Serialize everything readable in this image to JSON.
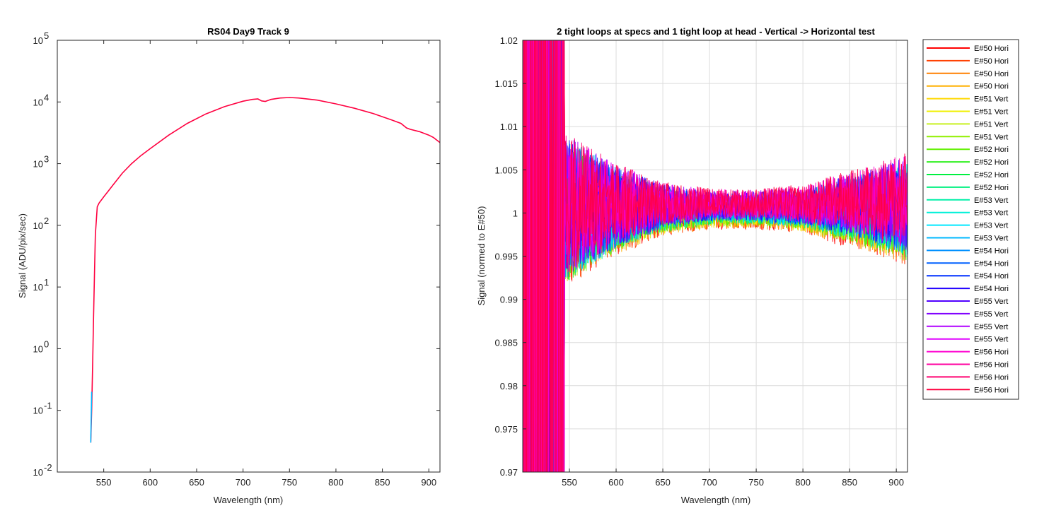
{
  "chart_data": [
    {
      "type": "line",
      "title": "RS04 Day9 Track 9",
      "xlabel": "Wavelength (nm)",
      "ylabel": "Signal (ADU/pix/sec)",
      "yscale": "log",
      "xlim": [
        500,
        912
      ],
      "ylim": [
        0.01,
        100000
      ],
      "grid": false,
      "xticks": [
        550,
        600,
        650,
        700,
        750,
        800,
        850,
        900
      ],
      "xtick_labels": [
        "550",
        "600",
        "650",
        "700",
        "750",
        "800",
        "850",
        "900"
      ],
      "yticks": [
        0.01,
        0.1,
        1,
        10,
        100,
        1000,
        10000,
        100000
      ],
      "ytick_labels": [
        {
          "base": "10",
          "exp": "-2"
        },
        {
          "base": "10",
          "exp": "-1"
        },
        {
          "base": "10",
          "exp": "0"
        },
        {
          "base": "10",
          "exp": "1"
        },
        {
          "base": "10",
          "exp": "2"
        },
        {
          "base": "10",
          "exp": "3"
        },
        {
          "base": "10",
          "exp": "4"
        },
        {
          "base": "10",
          "exp": "5"
        }
      ],
      "series": [
        {
          "color": "#ff0040",
          "x": [
            536,
            537,
            538,
            539,
            540,
            541,
            543,
            545,
            550,
            555,
            560,
            570,
            580,
            590,
            600,
            620,
            640,
            660,
            680,
            700,
            710,
            716,
            720,
            724,
            730,
            740,
            750,
            760,
            780,
            800,
            820,
            840,
            860,
            870,
            876,
            880,
            890,
            900,
            905,
            912
          ],
          "y": [
            0.03,
            0.1,
            0.5,
            3,
            15,
            70,
            200,
            230,
            290,
            360,
            450,
            700,
            1000,
            1350,
            1750,
            2900,
            4500,
            6400,
            8400,
            10300,
            11000,
            11200,
            10400,
            10200,
            11000,
            11600,
            11800,
            11600,
            10700,
            9300,
            7900,
            6500,
            5100,
            4500,
            3800,
            3600,
            3300,
            2900,
            2650,
            2200
          ]
        }
      ]
    },
    {
      "type": "line",
      "title": "2 tight loops at specs and 1 tight loop at head - Vertical -> Horizontal test",
      "xlabel": "Wavelength (nm)",
      "ylabel": "Signal (normed to E#50)",
      "xlim": [
        500,
        912
      ],
      "ylim": [
        0.97,
        1.02
      ],
      "grid": true,
      "legend_position": "outside-right",
      "xticks": [
        550,
        600,
        650,
        700,
        750,
        800,
        850,
        900
      ],
      "xtick_labels": [
        "550",
        "600",
        "650",
        "700",
        "750",
        "800",
        "850",
        "900"
      ],
      "yticks": [
        0.97,
        0.975,
        0.98,
        0.985,
        0.99,
        0.995,
        1,
        1.005,
        1.01,
        1.015,
        1.02
      ],
      "ytick_labels": [
        "0.97",
        "0.975",
        "0.98",
        "0.985",
        "0.99",
        "0.995",
        "1",
        "1.005",
        "1.01",
        "1.015",
        "1.02"
      ],
      "approx_envelope": {
        "x": [
          550,
          600,
          650,
          700,
          750,
          800,
          850,
          912
        ],
        "upper": [
          1.012,
          1.007,
          1.004,
          1.003,
          1.003,
          1.003,
          1.004,
          1.007
        ],
        "lower": [
          0.993,
          0.996,
          0.998,
          0.999,
          0.999,
          0.998,
          0.996,
          0.994
        ]
      },
      "series": [
        {
          "name": "E#50 Hori",
          "color": "#ff0000"
        },
        {
          "name": "E#50 Hori",
          "color": "#ff4000"
        },
        {
          "name": "E#50 Hori",
          "color": "#ff8000"
        },
        {
          "name": "E#50 Hori",
          "color": "#ffb000"
        },
        {
          "name": "E#51 Vert",
          "color": "#ffd800"
        },
        {
          "name": "E#51 Vert",
          "color": "#f0f000"
        },
        {
          "name": "E#51 Vert",
          "color": "#c8f020"
        },
        {
          "name": "E#51 Vert",
          "color": "#90f000"
        },
        {
          "name": "E#52 Hori",
          "color": "#60f000"
        },
        {
          "name": "E#52 Hori",
          "color": "#30f020"
        },
        {
          "name": "E#52 Hori",
          "color": "#00f040"
        },
        {
          "name": "E#52 Hori",
          "color": "#00f080"
        },
        {
          "name": "E#53 Vert",
          "color": "#00f0a8"
        },
        {
          "name": "E#53 Vert",
          "color": "#00f0d8"
        },
        {
          "name": "E#53 Vert",
          "color": "#00e8ff"
        },
        {
          "name": "E#53 Vert",
          "color": "#00b8ff"
        },
        {
          "name": "E#54 Hori",
          "color": "#0090ff"
        },
        {
          "name": "E#54 Hori",
          "color": "#0060ff"
        },
        {
          "name": "E#54 Hori",
          "color": "#0030ff"
        },
        {
          "name": "E#54 Hori",
          "color": "#2000ff"
        },
        {
          "name": "E#55 Vert",
          "color": "#5000ff"
        },
        {
          "name": "E#55 Vert",
          "color": "#8000ff"
        },
        {
          "name": "E#55 Vert",
          "color": "#b000ff"
        },
        {
          "name": "E#55 Vert",
          "color": "#e000ff"
        },
        {
          "name": "E#56 Hori",
          "color": "#ff00d0"
        },
        {
          "name": "E#56 Hori",
          "color": "#ff00a0"
        },
        {
          "name": "E#56 Hori",
          "color": "#ff0070"
        },
        {
          "name": "E#56 Hori",
          "color": "#ff0040"
        }
      ]
    }
  ]
}
